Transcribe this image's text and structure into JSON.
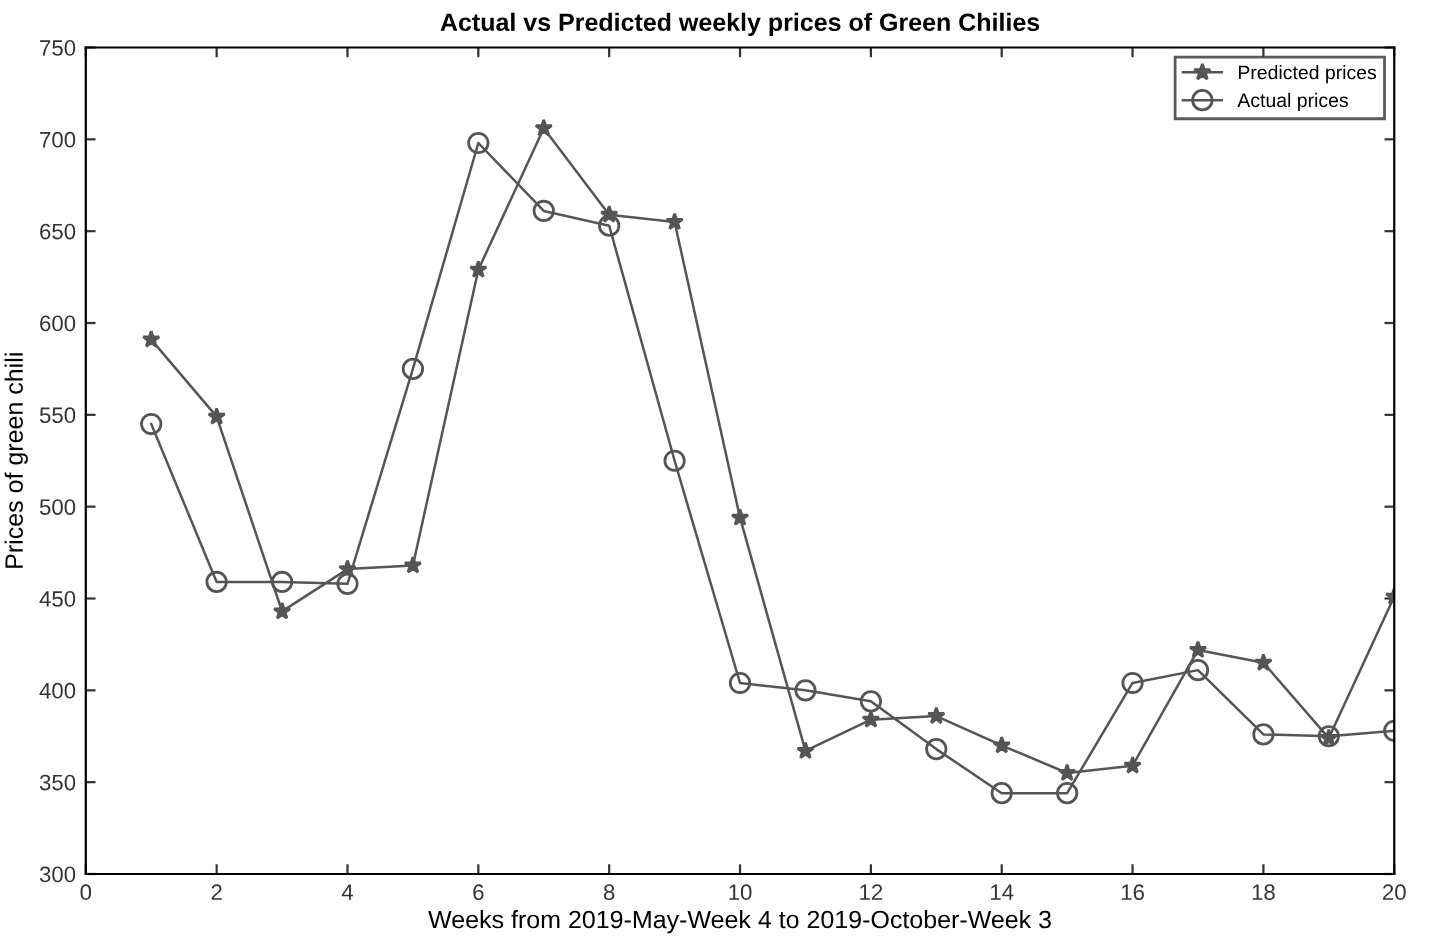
{
  "chart_data": {
    "type": "line",
    "title": "Actual vs Predicted weekly prices of Green Chilies",
    "xlabel": "Weeks from 2019-May-Week 4 to 2019-October-Week 3",
    "ylabel": "Prices of green chili",
    "x": [
      1,
      2,
      3,
      4,
      5,
      6,
      7,
      8,
      9,
      10,
      11,
      12,
      13,
      14,
      15,
      16,
      17,
      18,
      19,
      20
    ],
    "series": [
      {
        "name": "Predicted prices",
        "color": "#555555",
        "marker": "star",
        "values": [
          591,
          549,
          443,
          466,
          468,
          629,
          706,
          659,
          655,
          494,
          367,
          384,
          386,
          370,
          355,
          359,
          422,
          415,
          374,
          451
        ]
      },
      {
        "name": "Actual prices",
        "color": "#555555",
        "marker": "circle",
        "values": [
          545,
          459,
          459,
          458,
          575,
          698,
          661,
          653,
          525,
          404,
          400,
          394,
          368,
          344,
          344,
          404,
          411,
          376,
          375,
          378
        ]
      }
    ],
    "xlim": [
      0,
      20
    ],
    "xticks": [
      0,
      2,
      4,
      6,
      8,
      10,
      12,
      14,
      16,
      18,
      20
    ],
    "ylim": [
      300,
      750
    ],
    "yticks": [
      300,
      350,
      400,
      450,
      500,
      550,
      600,
      650,
      700,
      750
    ],
    "grid": false,
    "legend": "top right",
    "line_style": "solid"
  }
}
